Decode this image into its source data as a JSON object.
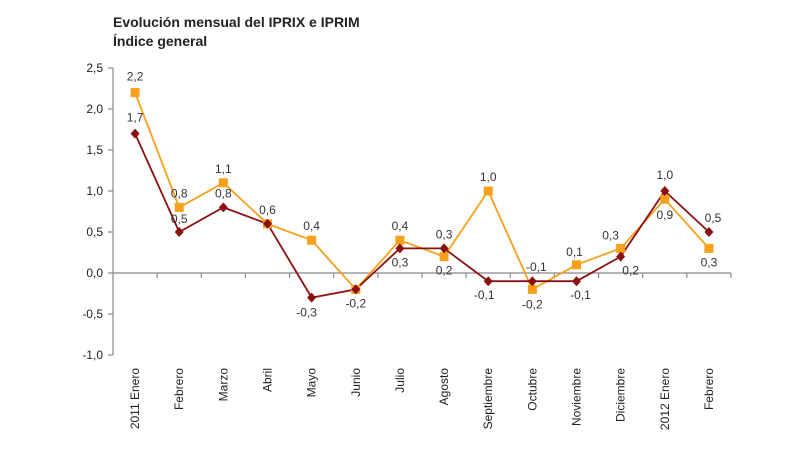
{
  "chart_data": {
    "type": "line",
    "title": "Evolución mensual del IPRIX e IPRIM",
    "subtitle": "Índice general",
    "xlabel": "",
    "ylabel": "",
    "ylim": [
      -1.0,
      2.5
    ],
    "yticks": [
      "2,5",
      "2,0",
      "1,5",
      "1,0",
      "0,5",
      "0,0",
      "-0,5",
      "-1,0"
    ],
    "ytick_values": [
      2.5,
      2.0,
      1.5,
      1.0,
      0.5,
      0.0,
      -0.5,
      -1.0
    ],
    "categories": [
      "2011 Enero",
      "Febrero",
      "Marzo",
      "Abril",
      "Mayo",
      "Junio",
      "Julio",
      "Agosto",
      "Septiembre",
      "Octubre",
      "Noviembre",
      "Diciembre",
      "2012 Enero",
      "Febrero"
    ],
    "grid": false,
    "series": [
      {
        "name": "series-orange",
        "color": "#F7A01C",
        "marker": "square",
        "values": [
          2.2,
          0.8,
          1.1,
          0.6,
          0.4,
          -0.2,
          0.4,
          0.2,
          1.0,
          -0.2,
          0.1,
          0.3,
          0.9,
          0.3
        ],
        "labels": [
          "2,2",
          "0,8",
          "1,1",
          "",
          "0,4",
          "",
          "0,4",
          "0,2",
          "1,0",
          "-0,2",
          "0,1",
          "0,3",
          "0,9",
          "0,3"
        ]
      },
      {
        "name": "series-darkred",
        "color": "#8B1010",
        "marker": "diamond",
        "values": [
          1.7,
          0.5,
          0.8,
          0.6,
          -0.3,
          -0.2,
          0.3,
          0.3,
          -0.1,
          -0.1,
          -0.1,
          0.2,
          1.0,
          0.5
        ],
        "labels": [
          "1,7",
          "0,5",
          "0,8",
          "0,6",
          "-0,3",
          "-0,2",
          "0,3",
          "0,3",
          "-0,1",
          "-0,1",
          "-0,1",
          "0,2",
          "1,0",
          "0,5"
        ]
      }
    ]
  }
}
